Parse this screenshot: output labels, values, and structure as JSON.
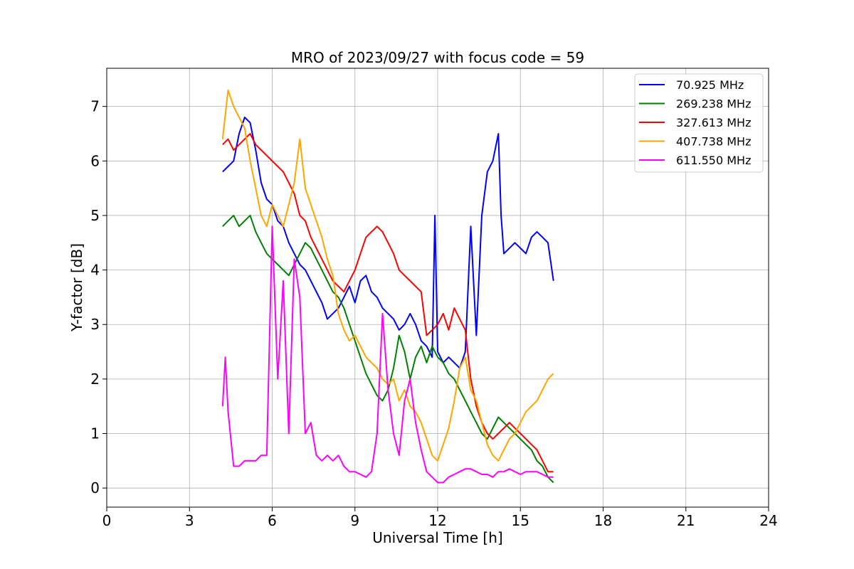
{
  "chart_data": {
    "type": "line",
    "title": "MRO of 2023/09/27 with focus code = 59",
    "xlabel": "Universal Time [h]",
    "ylabel": "Y-factor [dB]",
    "xlim": [
      0,
      24
    ],
    "ylim": [
      -0.35,
      7.7
    ],
    "xticks": [
      "0",
      "3",
      "6",
      "9",
      "12",
      "15",
      "18",
      "21",
      "24"
    ],
    "yticks": [
      "0",
      "1",
      "2",
      "3",
      "4",
      "5",
      "6",
      "7"
    ],
    "grid": true,
    "legend_position": "top-right",
    "series": [
      {
        "name": "70.925 MHz",
        "color": "#0000ff",
        "x": [
          4.2,
          4.4,
          4.6,
          4.8,
          5.0,
          5.2,
          5.4,
          5.6,
          5.8,
          6.0,
          6.2,
          6.4,
          6.6,
          6.8,
          7.0,
          7.2,
          7.4,
          7.6,
          7.8,
          8.0,
          8.2,
          8.4,
          8.6,
          8.8,
          9.0,
          9.2,
          9.4,
          9.6,
          9.8,
          10.0,
          10.2,
          10.4,
          10.6,
          10.8,
          11.0,
          11.2,
          11.4,
          11.6,
          11.8,
          11.9,
          12.0,
          12.2,
          12.4,
          12.6,
          12.8,
          13.0,
          13.2,
          13.4,
          13.6,
          13.8,
          14.0,
          14.2,
          14.3,
          14.4,
          14.6,
          14.8,
          15.0,
          15.2,
          15.4,
          15.6,
          15.8,
          16.0,
          16.2
        ],
        "y": [
          5.8,
          5.9,
          6.0,
          6.5,
          6.8,
          6.7,
          6.2,
          5.6,
          5.3,
          5.2,
          4.9,
          4.8,
          4.5,
          4.3,
          4.1,
          4.0,
          3.8,
          3.6,
          3.4,
          3.1,
          3.2,
          3.3,
          3.5,
          3.7,
          3.4,
          3.8,
          3.9,
          3.6,
          3.5,
          3.3,
          3.2,
          3.1,
          2.9,
          3.0,
          3.2,
          3.0,
          2.7,
          2.6,
          2.4,
          5.0,
          2.5,
          2.3,
          2.4,
          2.3,
          2.2,
          2.5,
          4.8,
          2.8,
          5.0,
          5.8,
          6.0,
          6.5,
          5.0,
          4.3,
          4.4,
          4.5,
          4.4,
          4.3,
          4.6,
          4.7,
          4.6,
          4.5,
          3.8
        ]
      },
      {
        "name": "269.238 MHz",
        "color": "#008000",
        "x": [
          4.2,
          4.4,
          4.6,
          4.8,
          5.0,
          5.2,
          5.4,
          5.6,
          5.8,
          6.0,
          6.2,
          6.4,
          6.6,
          6.8,
          7.0,
          7.2,
          7.4,
          7.6,
          7.8,
          8.0,
          8.2,
          8.4,
          8.6,
          8.8,
          9.0,
          9.2,
          9.4,
          9.6,
          9.8,
          10.0,
          10.2,
          10.4,
          10.6,
          10.8,
          11.0,
          11.2,
          11.4,
          11.6,
          11.8,
          12.0,
          12.2,
          12.4,
          12.6,
          12.8,
          13.0,
          13.2,
          13.4,
          13.6,
          13.8,
          14.0,
          14.2,
          14.4,
          14.6,
          14.8,
          15.0,
          15.2,
          15.4,
          15.6,
          15.8,
          16.0,
          16.2
        ],
        "y": [
          4.8,
          4.9,
          5.0,
          4.8,
          4.9,
          5.0,
          4.7,
          4.5,
          4.3,
          4.2,
          4.1,
          4.0,
          3.9,
          4.1,
          4.3,
          4.5,
          4.4,
          4.2,
          4.0,
          3.8,
          3.6,
          3.5,
          3.3,
          3.0,
          2.7,
          2.4,
          2.1,
          1.9,
          1.7,
          1.6,
          1.8,
          2.2,
          2.8,
          2.5,
          2.0,
          2.4,
          2.6,
          2.3,
          2.6,
          2.4,
          2.3,
          2.1,
          2.0,
          1.8,
          1.6,
          1.4,
          1.2,
          1.0,
          0.9,
          1.1,
          1.3,
          1.2,
          1.1,
          1.0,
          0.9,
          0.8,
          0.7,
          0.5,
          0.4,
          0.2,
          0.1
        ]
      },
      {
        "name": "327.613 MHz",
        "color": "#ff0000",
        "x": [
          4.2,
          4.4,
          4.6,
          4.8,
          5.0,
          5.2,
          5.4,
          5.6,
          5.8,
          6.0,
          6.2,
          6.4,
          6.6,
          6.8,
          7.0,
          7.2,
          7.4,
          7.6,
          7.8,
          8.0,
          8.2,
          8.4,
          8.6,
          8.8,
          9.0,
          9.2,
          9.4,
          9.6,
          9.8,
          10.0,
          10.2,
          10.4,
          10.6,
          10.8,
          11.0,
          11.2,
          11.4,
          11.6,
          11.8,
          12.0,
          12.2,
          12.4,
          12.6,
          12.8,
          13.0,
          13.2,
          13.4,
          13.6,
          13.8,
          14.0,
          14.2,
          14.4,
          14.6,
          14.8,
          15.0,
          15.2,
          15.4,
          15.6,
          15.8,
          16.0,
          16.2
        ],
        "y": [
          6.3,
          6.4,
          6.2,
          6.3,
          6.4,
          6.5,
          6.3,
          6.2,
          6.1,
          6.0,
          5.9,
          5.8,
          5.6,
          5.4,
          5.0,
          4.9,
          4.6,
          4.4,
          4.2,
          4.0,
          3.8,
          3.7,
          3.6,
          3.8,
          4.0,
          4.3,
          4.6,
          4.7,
          4.8,
          4.7,
          4.5,
          4.3,
          4.0,
          3.9,
          3.8,
          3.7,
          3.6,
          2.8,
          2.9,
          3.0,
          3.2,
          2.9,
          3.3,
          3.1,
          2.9,
          2.0,
          1.5,
          1.2,
          1.0,
          0.9,
          1.0,
          1.1,
          1.2,
          1.1,
          1.0,
          0.9,
          0.8,
          0.7,
          0.5,
          0.3,
          0.3
        ]
      },
      {
        "name": "407.738 MHz",
        "color": "#ffa500",
        "x": [
          4.2,
          4.4,
          4.6,
          4.8,
          5.0,
          5.2,
          5.4,
          5.6,
          5.8,
          6.0,
          6.2,
          6.4,
          6.6,
          6.8,
          7.0,
          7.2,
          7.4,
          7.6,
          7.8,
          8.0,
          8.2,
          8.4,
          8.6,
          8.8,
          9.0,
          9.2,
          9.4,
          9.6,
          9.8,
          10.0,
          10.2,
          10.4,
          10.6,
          10.8,
          11.0,
          11.2,
          11.4,
          11.6,
          11.8,
          12.0,
          12.2,
          12.4,
          12.6,
          12.8,
          13.0,
          13.2,
          13.4,
          13.6,
          13.8,
          14.0,
          14.2,
          14.4,
          14.6,
          14.8,
          15.0,
          15.2,
          15.4,
          15.6,
          15.8,
          16.0,
          16.2
        ],
        "y": [
          6.4,
          7.3,
          7.0,
          6.8,
          6.6,
          6.0,
          5.5,
          5.0,
          4.8,
          5.2,
          5.0,
          4.8,
          5.2,
          5.6,
          6.4,
          5.5,
          5.2,
          4.9,
          4.6,
          4.2,
          3.9,
          3.2,
          2.9,
          2.7,
          2.8,
          2.6,
          2.4,
          2.3,
          2.2,
          2.0,
          1.9,
          2.0,
          1.6,
          1.8,
          1.5,
          1.4,
          1.2,
          0.9,
          0.6,
          0.5,
          0.8,
          1.1,
          1.6,
          2.2,
          2.4,
          1.8,
          1.6,
          1.2,
          0.8,
          0.6,
          0.5,
          0.7,
          0.9,
          1.0,
          1.2,
          1.4,
          1.5,
          1.6,
          1.8,
          2.0,
          2.1
        ]
      },
      {
        "name": "611.550 MHz",
        "color": "#ff00ff",
        "x": [
          4.2,
          4.3,
          4.4,
          4.6,
          4.8,
          5.0,
          5.2,
          5.4,
          5.6,
          5.8,
          6.0,
          6.2,
          6.4,
          6.6,
          6.8,
          7.0,
          7.2,
          7.4,
          7.6,
          7.8,
          8.0,
          8.2,
          8.4,
          8.6,
          8.8,
          9.0,
          9.2,
          9.4,
          9.6,
          9.8,
          10.0,
          10.2,
          10.4,
          10.6,
          10.8,
          11.0,
          11.2,
          11.4,
          11.6,
          11.8,
          12.0,
          12.2,
          12.4,
          12.6,
          12.8,
          13.0,
          13.2,
          13.4,
          13.6,
          13.8,
          14.0,
          14.2,
          14.4,
          14.6,
          14.8,
          15.0,
          15.2,
          15.4,
          15.6,
          15.8,
          16.0,
          16.2
        ],
        "y": [
          1.5,
          2.4,
          1.4,
          0.4,
          0.4,
          0.5,
          0.5,
          0.5,
          0.6,
          0.6,
          4.8,
          2.0,
          3.8,
          1.0,
          4.2,
          3.5,
          1.0,
          1.2,
          0.6,
          0.5,
          0.6,
          0.5,
          0.6,
          0.4,
          0.3,
          0.3,
          0.25,
          0.2,
          0.3,
          1.0,
          3.2,
          1.8,
          1.0,
          0.6,
          1.6,
          2.0,
          1.2,
          0.7,
          0.3,
          0.2,
          0.1,
          0.1,
          0.2,
          0.25,
          0.3,
          0.35,
          0.35,
          0.3,
          0.25,
          0.25,
          0.2,
          0.3,
          0.3,
          0.35,
          0.3,
          0.25,
          0.3,
          0.3,
          0.3,
          0.25,
          0.2,
          0.2
        ]
      }
    ]
  }
}
